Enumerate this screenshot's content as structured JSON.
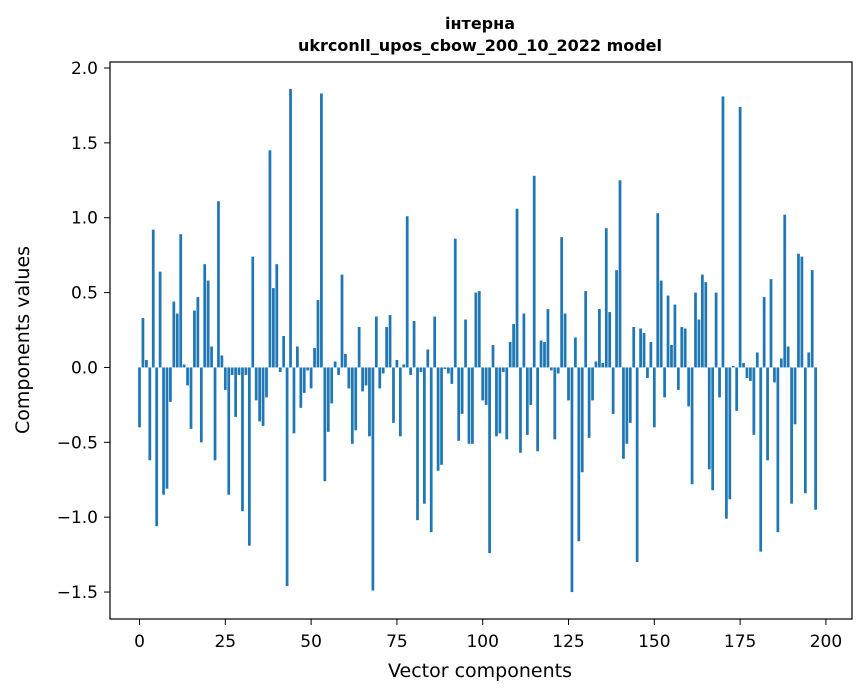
{
  "chart_data": {
    "type": "bar",
    "title": "інтерна",
    "subtitle": "ukrconll_upos_cbow_200_10_2022 model",
    "xlabel": "Vector components",
    "ylabel": "Components values",
    "xlim": [
      -8.6,
      207.6
    ],
    "ylim": [
      -1.68,
      2.04
    ],
    "xticks": [
      0,
      25,
      50,
      75,
      100,
      125,
      150,
      175,
      200
    ],
    "yticks": [
      -1.5,
      -1.0,
      -0.5,
      0.0,
      0.5,
      1.0,
      1.5,
      2.0
    ],
    "ytick_labels": [
      "−1.5",
      "−1.0",
      "−0.5",
      "0.0",
      "0.5",
      "1.0",
      "1.5",
      "2.0"
    ],
    "bar_color": "#1f77b4",
    "values": [
      -0.4,
      0.33,
      0.05,
      -0.62,
      0.92,
      -1.06,
      0.64,
      -0.85,
      -0.81,
      -0.23,
      0.44,
      0.36,
      0.89,
      0.02,
      -0.12,
      -0.41,
      0.38,
      0.47,
      -0.5,
      0.69,
      0.58,
      0.14,
      -0.62,
      1.11,
      0.08,
      -0.15,
      -0.85,
      -0.05,
      -0.33,
      -0.05,
      -0.96,
      -0.05,
      -1.19,
      0.74,
      -0.22,
      -0.36,
      -0.39,
      -0.2,
      1.45,
      0.53,
      0.69,
      -0.03,
      0.21,
      -1.46,
      1.86,
      -0.44,
      0.14,
      -0.27,
      -0.17,
      -0.02,
      -0.14,
      0.13,
      0.45,
      1.83,
      -0.76,
      -0.43,
      -0.24,
      0.04,
      -0.05,
      0.62,
      0.09,
      -0.14,
      -0.51,
      -0.42,
      0.27,
      -0.16,
      -0.12,
      -0.46,
      -1.49,
      0.34,
      -0.14,
      -0.04,
      0.27,
      0.35,
      -0.37,
      0.05,
      -0.46,
      0.02,
      1.01,
      -0.05,
      0.31,
      -1.02,
      -0.03,
      -0.91,
      0.12,
      -1.1,
      0.34,
      -0.69,
      -0.65,
      -0.01,
      -0.04,
      -0.11,
      0.86,
      -0.49,
      -0.31,
      0.32,
      -0.51,
      -0.51,
      0.5,
      0.51,
      -0.22,
      -0.25,
      -1.24,
      0.15,
      -0.46,
      -0.44,
      -0.03,
      -0.48,
      0.17,
      0.29,
      1.06,
      -0.57,
      0.36,
      -0.45,
      -0.25,
      1.28,
      -0.56,
      0.18,
      0.17,
      0.39,
      -0.02,
      -0.48,
      -0.04,
      0.87,
      0.36,
      -0.22,
      -1.5,
      0.2,
      -1.16,
      -0.7,
      0.51,
      -0.47,
      -0.22,
      0.04,
      0.39,
      0.03,
      0.93,
      0.37,
      -0.31,
      0.65,
      1.25,
      -0.61,
      -0.51,
      -0.37,
      0.27,
      -1.3,
      0.26,
      0.23,
      -0.07,
      0.17,
      -0.4,
      1.03,
      0.58,
      -0.2,
      0.48,
      0.15,
      0.42,
      -0.15,
      0.27,
      0.26,
      -0.26,
      -0.78,
      0.5,
      0.32,
      0.62,
      0.57,
      -0.68,
      -0.82,
      0.5,
      -0.2,
      1.81,
      -1.01,
      -0.88,
      0.01,
      -0.29,
      1.74,
      0.03,
      -0.07,
      -0.09,
      -0.45,
      0.1,
      -1.23,
      0.47,
      -0.62,
      0.59,
      -0.1,
      -1.1,
      0.06,
      1.02,
      0.14,
      -0.91,
      -0.38,
      0.76,
      0.74,
      -0.84,
      0.1,
      0.65,
      -0.95
    ]
  }
}
